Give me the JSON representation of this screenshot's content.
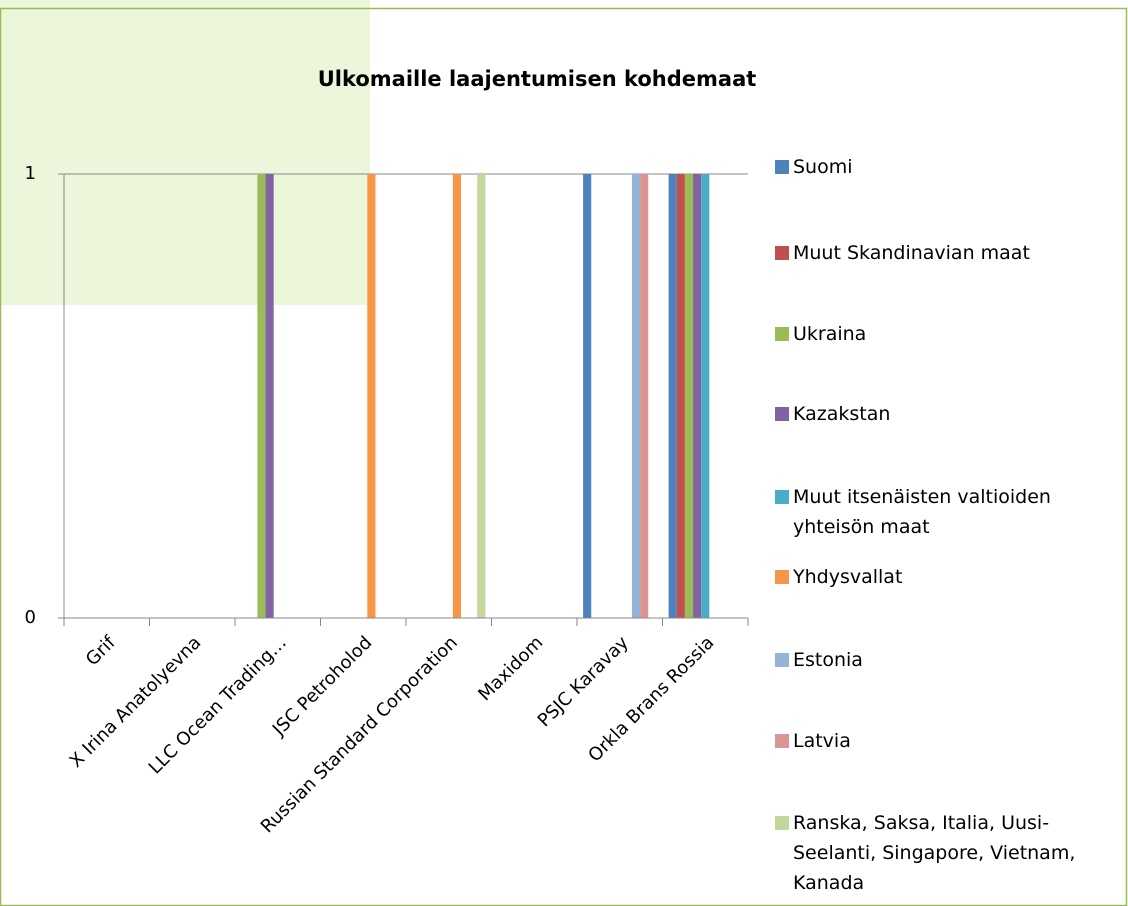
{
  "chart_data": {
    "type": "bar",
    "title": "Ulkomaille laajentumisen kohdemaat",
    "categories": [
      "Grif",
      "X Irina Anatolyevna",
      "LLC Ocean Trading…",
      "JSC Petroholod",
      "Russian Standard Corporation",
      "Maxidom",
      "PSJC Karavay",
      "Orkla Brans Rossia"
    ],
    "series": [
      {
        "name": "Suomi",
        "color": "#4f81bd",
        "values": [
          0,
          0,
          0,
          0,
          0,
          0,
          1,
          1
        ]
      },
      {
        "name": "Muut Skandinavian maat",
        "color": "#c0504d",
        "values": [
          0,
          0,
          0,
          0,
          0,
          0,
          0,
          1
        ]
      },
      {
        "name": "Ukraina",
        "color": "#9bbb59",
        "values": [
          0,
          0,
          1,
          0,
          0,
          0,
          0,
          1
        ]
      },
      {
        "name": "Kazakstan",
        "color": "#8064a2",
        "values": [
          0,
          0,
          1,
          0,
          0,
          0,
          0,
          1
        ]
      },
      {
        "name": "Muut itsenäisten valtioiden yhteisön maat",
        "color": "#4bacc6",
        "values": [
          0,
          0,
          0,
          0,
          0,
          0,
          0,
          1
        ]
      },
      {
        "name": "Yhdysvallat",
        "color": "#f79646",
        "values": [
          0,
          0,
          0,
          1,
          1,
          0,
          0,
          0
        ]
      },
      {
        "name": "Estonia",
        "color": "#95b3d7",
        "values": [
          0,
          0,
          0,
          0,
          0,
          0,
          1,
          0
        ]
      },
      {
        "name": "Latvia",
        "color": "#d99694",
        "values": [
          0,
          0,
          0,
          0,
          0,
          0,
          1,
          0
        ]
      },
      {
        "name": "Ranska, Saksa, Italia, Uusi-Seelanti, Singapore, Vietnam, Kanada",
        "color": "#c3d69b",
        "values": [
          0,
          0,
          0,
          0,
          1,
          0,
          0,
          0
        ]
      }
    ],
    "ylim": [
      0,
      1
    ],
    "yticks": [
      0,
      1
    ],
    "grid": true,
    "legend": "right"
  }
}
